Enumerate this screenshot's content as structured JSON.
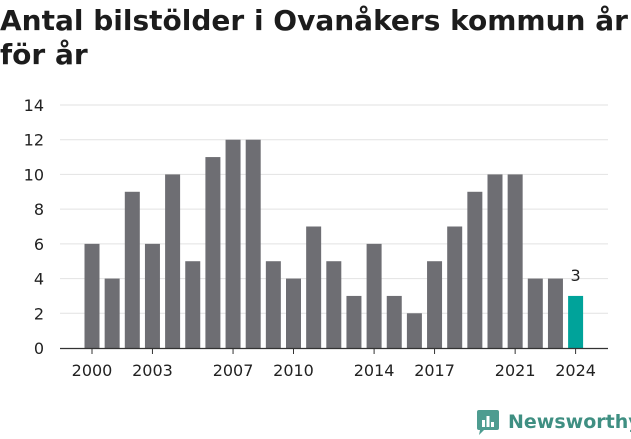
{
  "title": "Antal bilstölder i Ovanåkers kommun år för år",
  "brand": {
    "name": "Newsworthy",
    "icon": "bar-chart-logo-icon"
  },
  "colors": {
    "bar": "#6e6e73",
    "highlight": "#00a39a",
    "grid": "#e2e2e2",
    "axis": "#333333",
    "brand": "#3f8f82"
  },
  "chart_data": {
    "type": "bar",
    "title": "Antal bilstölder i Ovanåkers kommun år för år",
    "categories": [
      "2000",
      "2001",
      "2002",
      "2003",
      "2004",
      "2005",
      "2006",
      "2007",
      "2008",
      "2009",
      "2010",
      "2011",
      "2012",
      "2013",
      "2014",
      "2015",
      "2016",
      "2017",
      "2018",
      "2019",
      "2020",
      "2021",
      "2022",
      "2023",
      "2024"
    ],
    "values": [
      6,
      4,
      9,
      6,
      10,
      5,
      11,
      12,
      12,
      5,
      4,
      7,
      5,
      3,
      6,
      3,
      2,
      5,
      7,
      9,
      10,
      10,
      4,
      4,
      3
    ],
    "x_tick_labels": [
      "2000",
      "2003",
      "2007",
      "2010",
      "2014",
      "2017",
      "2021",
      "2024"
    ],
    "y_ticks": [
      0,
      2,
      4,
      6,
      8,
      10,
      12,
      14
    ],
    "ylim": [
      0,
      14
    ],
    "grid": true,
    "highlight": {
      "category": "2024",
      "label": "3"
    },
    "xlabel": "",
    "ylabel": ""
  }
}
